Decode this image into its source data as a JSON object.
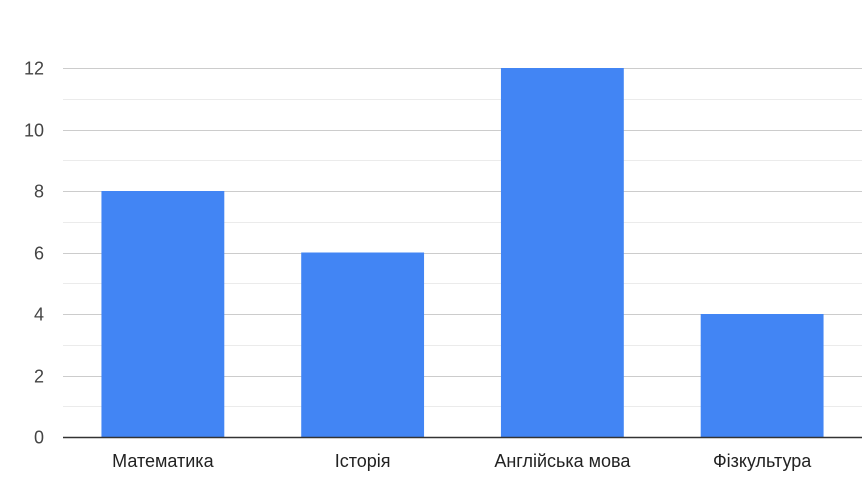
{
  "chart_data": {
    "type": "bar",
    "categories": [
      "Математика",
      "Історія",
      "Англійська мова",
      "Фізкультура"
    ],
    "values": [
      8,
      6,
      12,
      4
    ],
    "title": "",
    "xlabel": "",
    "ylabel": "",
    "ylim": [
      0,
      12
    ],
    "yticks": [
      0,
      2,
      4,
      6,
      8,
      10,
      12
    ],
    "grid": true,
    "minor_grid": true,
    "legend": "none",
    "colors": {
      "bar": "#4285f4",
      "major_grid": "#cccccc",
      "minor_grid": "#ebebeb",
      "baseline": "#333333",
      "tick_label": "#444444",
      "category_label": "#222222"
    }
  }
}
